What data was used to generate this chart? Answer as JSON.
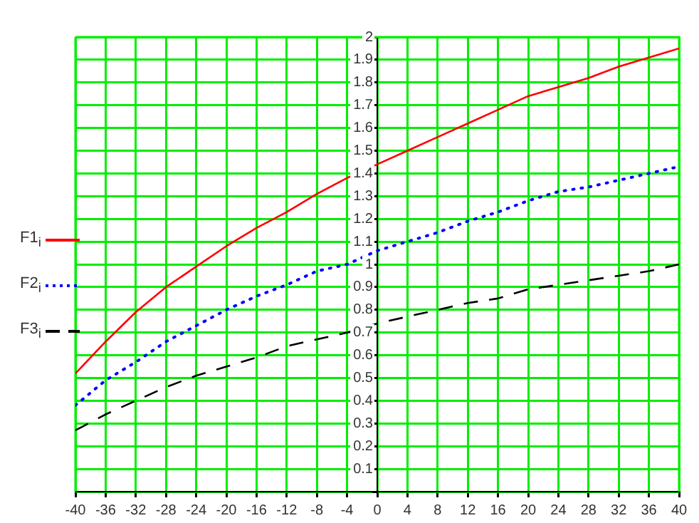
{
  "chart_data": {
    "type": "line",
    "x": [
      -40,
      -36,
      -32,
      -28,
      -24,
      -20,
      -16,
      -12,
      -8,
      -4,
      0,
      4,
      8,
      12,
      16,
      20,
      24,
      28,
      32,
      36,
      40
    ],
    "series": [
      {
        "name": "F1$_{i}$",
        "color": "#ff0000",
        "line_style": "solid",
        "values": [
          0.52,
          0.66,
          0.79,
          0.9,
          0.99,
          1.08,
          1.16,
          1.23,
          1.31,
          1.38,
          1.44,
          1.5,
          1.56,
          1.62,
          1.68,
          1.74,
          1.78,
          1.82,
          1.87,
          1.91,
          1.95
        ]
      },
      {
        "name": "F2$_{i}$",
        "color": "#0000ff",
        "line_style": "dotted",
        "values": [
          0.38,
          0.49,
          0.57,
          0.66,
          0.73,
          0.8,
          0.86,
          0.91,
          0.97,
          1.0,
          1.06,
          1.1,
          1.14,
          1.19,
          1.23,
          1.28,
          1.32,
          1.34,
          1.37,
          1.4,
          1.43
        ]
      },
      {
        "name": "F3$_{i}$",
        "color": "#000000",
        "line_style": "dashed",
        "values": [
          0.27,
          0.34,
          0.4,
          0.46,
          0.51,
          0.55,
          0.59,
          0.64,
          0.67,
          0.7,
          0.74,
          0.77,
          0.8,
          0.83,
          0.85,
          0.89,
          0.91,
          0.93,
          0.95,
          0.97,
          1.0
        ]
      }
    ],
    "xlim": [
      -40,
      40
    ],
    "xticks": [
      -40,
      -36,
      -32,
      -28,
      -24,
      -20,
      -16,
      -12,
      -8,
      -4,
      0,
      4,
      8,
      12,
      16,
      20,
      24,
      28,
      32,
      36,
      40
    ],
    "ylim": [
      0,
      2
    ],
    "yticks": [
      {
        "value": 0,
        "label": null
      },
      0.1,
      0.2,
      0.3,
      0.4,
      0.5,
      0.6,
      0.7,
      0.8,
      0.9,
      1,
      1.1,
      1.2,
      1.3,
      1.4,
      1.5,
      1.6,
      1.7,
      1.8,
      1.9,
      2
    ],
    "grid": true,
    "legend": "left",
    "marker": "none"
  }
}
